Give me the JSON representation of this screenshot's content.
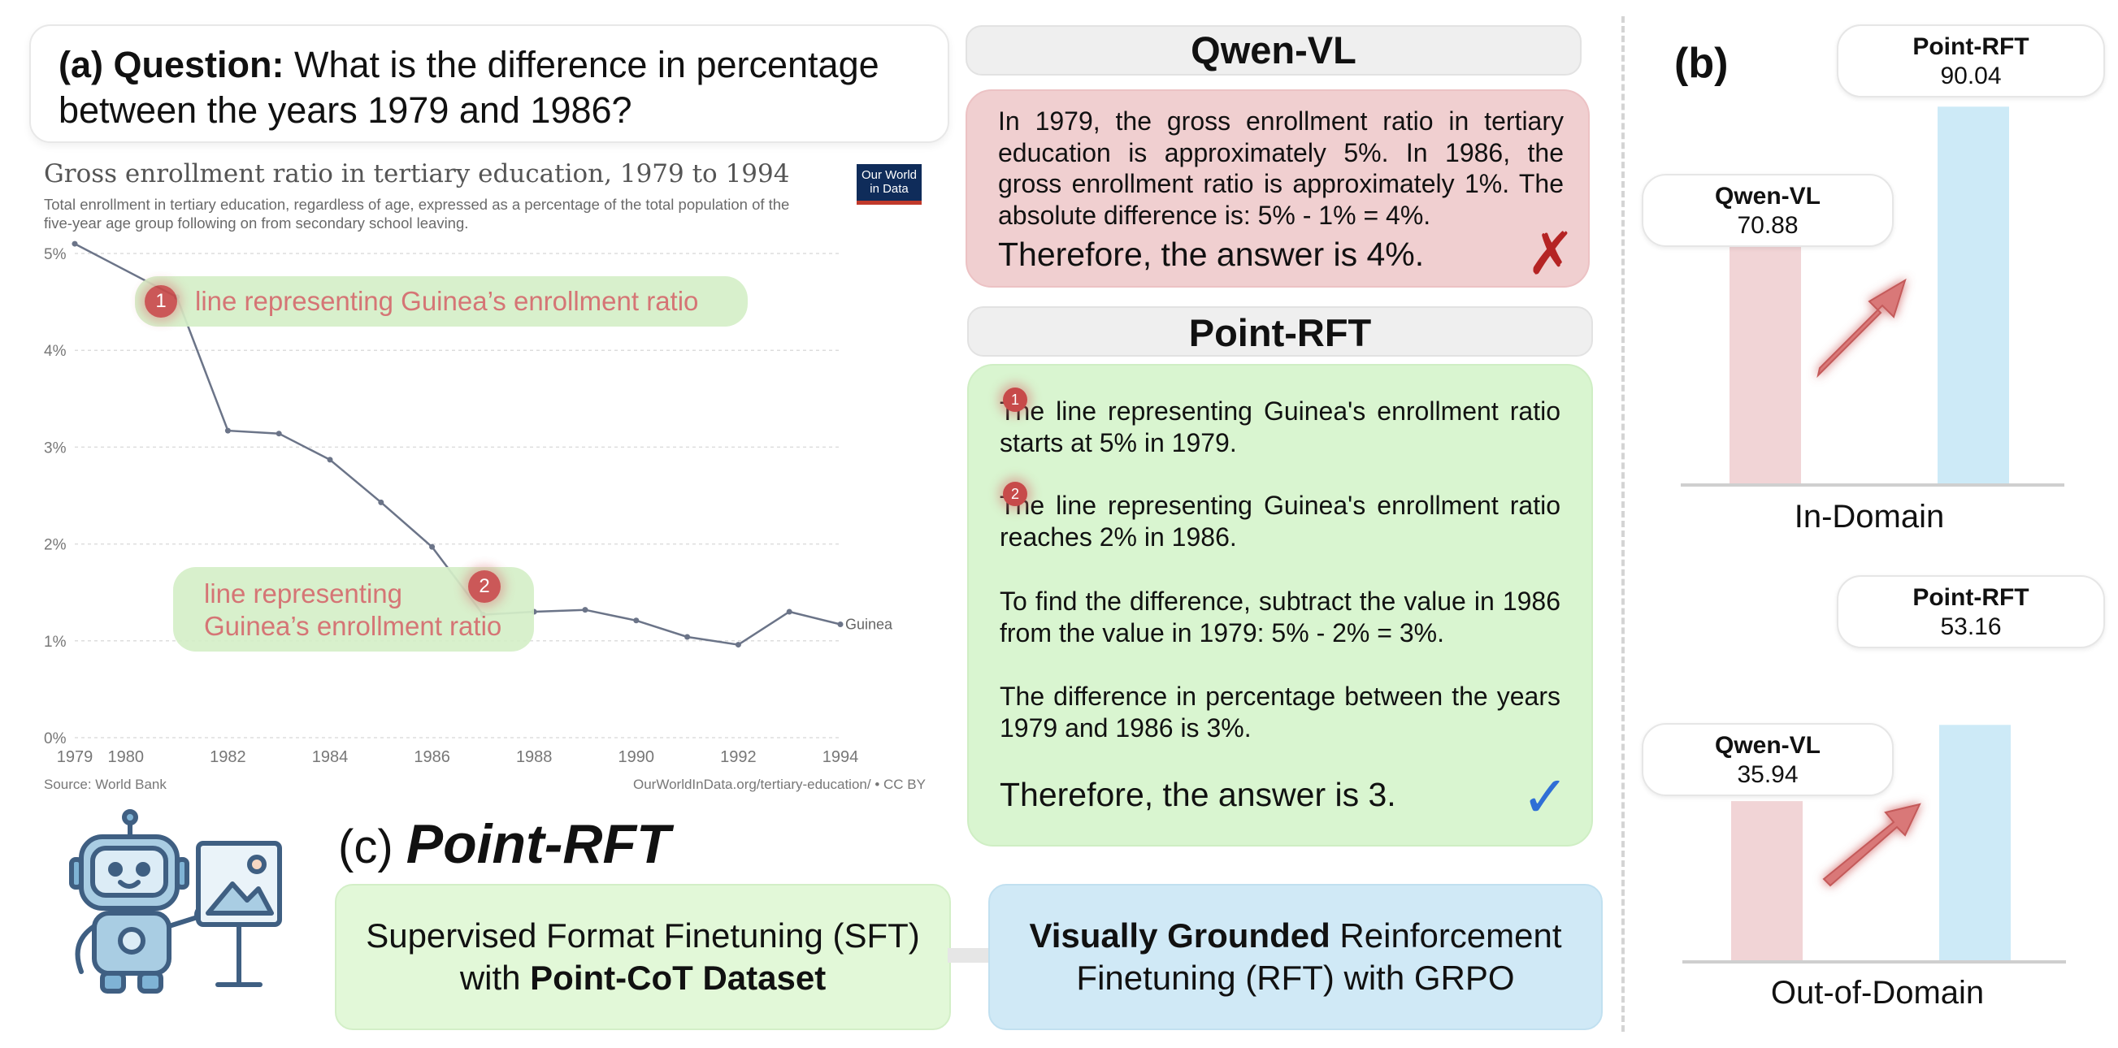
{
  "panel_a": {
    "question_label": "(a) Question:",
    "question_line1": "What is the difference in percentage",
    "question_line2": "between the years 1979 and 1986?"
  },
  "chart": {
    "title": "Gross enrollment ratio in tertiary education, 1979 to 1994",
    "subtitle_line1": "Total enrollment in tertiary education, regardless of age, expressed as a percentage of the total population of the",
    "subtitle_line2": "five-year age group following on from secondary school leaving.",
    "logo_line1": "Our World",
    "logo_line2": "in Data",
    "source": "Source: World Bank",
    "url": "OurWorldInData.org/tertiary-education/ • CC BY",
    "annotation1": "line representing Guinea’s enrollment ratio",
    "annotation2_line1": "line representing",
    "annotation2_line2": "Guinea’s enrollment ratio",
    "marker1": "1",
    "marker2": "2"
  },
  "chart_data": [
    {
      "type": "line",
      "title": "Gross enrollment ratio in tertiary education, 1979 to 1994",
      "series": [
        {
          "name": "Guinea",
          "x": [
            1979,
            1981,
            1982,
            1983,
            1984,
            1985,
            1986,
            1987,
            1988,
            1989,
            1990,
            1991,
            1992,
            1993,
            1994
          ],
          "y": [
            5.1,
            4.55,
            3.17,
            3.14,
            2.87,
            2.43,
            1.97,
            1.27,
            1.3,
            1.32,
            1.21,
            1.04,
            0.96,
            1.3,
            1.17
          ]
        }
      ],
      "x_ticks": [
        "1979",
        "1980",
        "1982",
        "1984",
        "1986",
        "1988",
        "1990",
        "1992",
        "1994"
      ],
      "y_ticks": [
        "0%",
        "1%",
        "2%",
        "3%",
        "4%",
        "5%"
      ],
      "xlim": [
        1979,
        1994
      ],
      "ylim": [
        0,
        5
      ],
      "grid": true
    },
    {
      "type": "bar",
      "title": "",
      "xlabel": "In-Domain",
      "categories": [
        "Qwen-VL",
        "Point-RFT"
      ],
      "values": [
        70.88,
        90.04
      ],
      "colors": [
        "#f1d4d6",
        "#cdeaf7"
      ]
    },
    {
      "type": "bar",
      "title": "",
      "xlabel": "Out-of-Domain",
      "categories": [
        "Qwen-VL",
        "Point-RFT"
      ],
      "values": [
        35.94,
        53.16
      ],
      "colors": [
        "#f1d4d6",
        "#cdeaf7"
      ]
    }
  ],
  "qwen": {
    "header": "Qwen-VL",
    "text": "In 1979, the gross enrollment ratio in tertiary education is approximately 5%. In 1986, the gross enrollment ratio is approximately 1%. The absolute difference is: 5% - 1% = 4%.",
    "answer": "Therefore, the answer is 4%.",
    "mark": "✗"
  },
  "point_rft": {
    "header": "Point-RFT",
    "p1": "The line representing Guinea's enrollment ratio starts at 5% in 1979.",
    "p2": "The line representing Guinea's enrollment ratio reaches 2% in 1986.",
    "p3": "To find the difference, subtract the value in 1986 from the value in 1979: 5% - 2% = 3%.",
    "p4": "The difference in percentage between the years 1979 and 1986 is 3%.",
    "answer": "Therefore, the answer is 3.",
    "mark": "✓",
    "marker1": "1",
    "marker2": "2"
  },
  "panel_c": {
    "label": "(c)",
    "title": "Point-RFT",
    "sft_line1": "Supervised Format Finetuning (SFT)",
    "sft_line2_pre": "with ",
    "sft_line2_bold": "Point-CoT Dataset",
    "rft_line1_bold": "Visually Grounded",
    "rft_line1_rest": " Reinforcement",
    "rft_line2": "Finetuning (RFT) with GRPO"
  },
  "panel_b": {
    "label": "(b)",
    "in_domain": {
      "caption": "In-Domain",
      "qwen_name": "Qwen-VL",
      "qwen_value": "70.88",
      "point_name": "Point-RFT",
      "point_value": "90.04"
    },
    "out_domain": {
      "caption": "Out-of-Domain",
      "qwen_name": "Qwen-VL",
      "qwen_value": "35.94",
      "point_name": "Point-RFT",
      "point_value": "53.16"
    }
  },
  "colors": {
    "qwen_bar": "#f1d4d6",
    "point_bar": "#cdeaf7",
    "arrow": "#d97878",
    "wrong": "#b52424",
    "check": "#2f6fd6",
    "line": "#6b7488"
  },
  "icons": [
    "robot-icon",
    "picture-easel-icon",
    "cross-mark-icon",
    "check-mark-icon",
    "up-arrow-icon"
  ]
}
